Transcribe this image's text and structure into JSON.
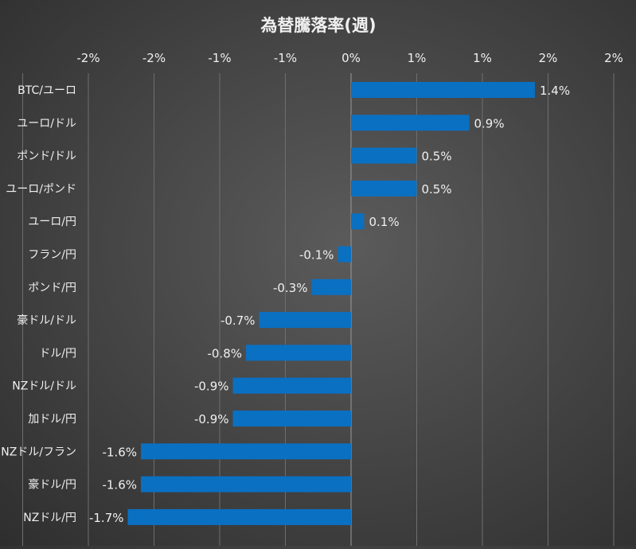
{
  "chart_data": {
    "type": "bar",
    "orientation": "horizontal",
    "title": "為替騰落率(週)",
    "x_tick_labels": [
      "-2%",
      "-2%",
      "-1%",
      "-1%",
      "0%",
      "1%",
      "1%",
      "2%",
      "2%"
    ],
    "x_ticks": [
      -2.5,
      -2.0,
      -1.5,
      -1.0,
      -0.5,
      0.0,
      0.5,
      1.0,
      1.5,
      2.0
    ],
    "xlim": [
      -2.0,
      2.0
    ],
    "grid": true,
    "categories": [
      "BTC/ユーロ",
      "ユーロ/ドル",
      "ポンド/ドル",
      "ユーロ/ポンド",
      "ユーロ/円",
      "フラン/円",
      "ポンド/円",
      "豪ドル/ドル",
      "ドル/円",
      "NZドル/ドル",
      "加ドル/円",
      "NZドル/フラン",
      "豪ドル/円",
      "NZドル/円"
    ],
    "values": [
      1.4,
      0.9,
      0.5,
      0.5,
      0.1,
      -0.1,
      -0.3,
      -0.7,
      -0.8,
      -0.9,
      -0.9,
      -1.6,
      -1.6,
      -1.7
    ],
    "value_labels": [
      "1.4%",
      "0.9%",
      "0.5%",
      "0.5%",
      "0.1%",
      "-0.1%",
      "-0.3%",
      "-0.7%",
      "-0.8%",
      "-0.9%",
      "-0.9%",
      "-1.6%",
      "-1.6%",
      "-1.7%"
    ],
    "bar_color": "#0a70c2",
    "text_color": "#f0f0f0",
    "grid_color": "#6e6e6e"
  }
}
